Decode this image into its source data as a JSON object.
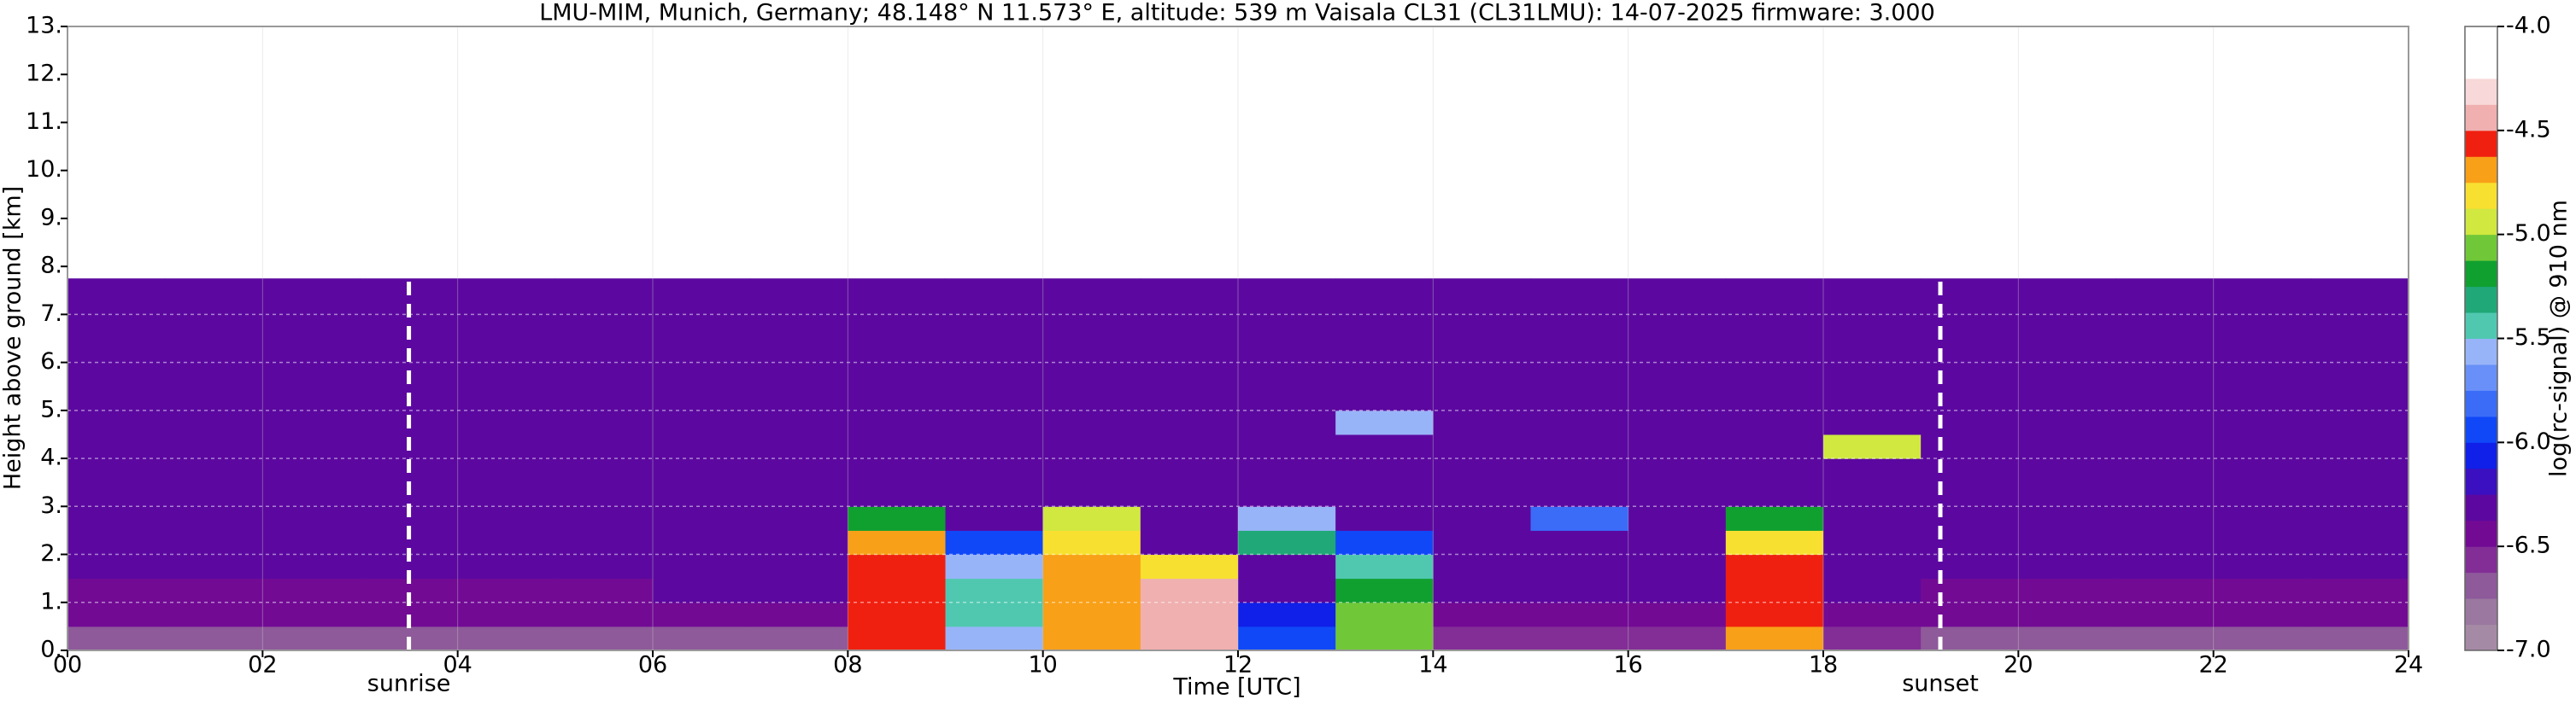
{
  "chart_data": {
    "type": "heatmap",
    "title": "LMU-MIM, Munich, Germany; 48.148° N 11.573° E, altitude: 539 m    Vaisala CL31 (CL31LMU): 14-07-2025    firmware: 3.000",
    "xlabel": "Time [UTC]",
    "ylabel": "Height above ground [km]",
    "xlim": [
      0,
      24
    ],
    "ylim": [
      0,
      13
    ],
    "xticks": [
      {
        "value": 0,
        "label": "00"
      },
      {
        "value": 2,
        "label": "02"
      },
      {
        "value": 4,
        "label": "04"
      },
      {
        "value": 6,
        "label": "06"
      },
      {
        "value": 8,
        "label": "08"
      },
      {
        "value": 10,
        "label": "10"
      },
      {
        "value": 12,
        "label": "12"
      },
      {
        "value": 14,
        "label": "14"
      },
      {
        "value": 16,
        "label": "16"
      },
      {
        "value": 18,
        "label": "18"
      },
      {
        "value": 20,
        "label": "20"
      },
      {
        "value": 22,
        "label": "22"
      },
      {
        "value": 24,
        "label": "24"
      }
    ],
    "yticks": [
      {
        "value": 0,
        "label": "0."
      },
      {
        "value": 1,
        "label": "1."
      },
      {
        "value": 2,
        "label": "2."
      },
      {
        "value": 3,
        "label": "3."
      },
      {
        "value": 4,
        "label": "4."
      },
      {
        "value": 5,
        "label": "5."
      },
      {
        "value": 6,
        "label": "6."
      },
      {
        "value": 7,
        "label": "7."
      },
      {
        "value": 8,
        "label": "8."
      },
      {
        "value": 9,
        "label": "9."
      },
      {
        "value": 10,
        "label": "10."
      },
      {
        "value": 11,
        "label": "11."
      },
      {
        "value": 12,
        "label": "12."
      },
      {
        "value": 13,
        "label": "13."
      }
    ],
    "grid": true,
    "x_bins": [
      0,
      1,
      2,
      3,
      4,
      5,
      6,
      7,
      8,
      9,
      10,
      11,
      12,
      13,
      14,
      15,
      16,
      17,
      18,
      19,
      20,
      21,
      22,
      23,
      24
    ],
    "y_bins": [
      0,
      0.5,
      1,
      1.5,
      2,
      2.5,
      3,
      3.5,
      4,
      4.5,
      5,
      5.5,
      6,
      6.5,
      7,
      7.5,
      7.75
    ],
    "values": [
      [
        -6.7,
        -6.7,
        -6.7,
        -6.7,
        -6.7,
        -6.7,
        -6.7,
        -6.7,
        -4.6,
        -5.6,
        -4.7,
        -4.4,
        -5.9,
        -5.1,
        -6.6,
        -6.6,
        -6.6,
        -4.7,
        -6.6,
        -6.7,
        -6.7,
        -6.7,
        -6.7,
        -6.7
      ],
      [
        -6.5,
        -6.5,
        -6.5,
        -6.5,
        -6.5,
        -6.5,
        -6.4,
        -6.4,
        -4.6,
        -5.5,
        -4.7,
        -4.4,
        -6.1,
        -5.1,
        -6.4,
        -6.4,
        -6.4,
        -4.6,
        -6.4,
        -6.5,
        -6.5,
        -6.5,
        -6.5,
        -6.5
      ],
      [
        -6.4,
        -6.4,
        -6.4,
        -6.4,
        -6.4,
        -6.4,
        -6.3,
        -6.3,
        -4.6,
        -5.4,
        -4.7,
        -4.4,
        -6.3,
        -5.2,
        -6.3,
        -6.3,
        -6.3,
        -4.6,
        -6.3,
        -6.4,
        -6.4,
        -6.4,
        -6.4,
        -6.4
      ],
      [
        -6.3,
        -6.3,
        -6.3,
        -6.3,
        -6.3,
        -6.3,
        -6.3,
        -6.3,
        -4.6,
        -5.6,
        -4.7,
        -4.8,
        -6.3,
        -5.4,
        -6.3,
        -6.3,
        -6.3,
        -4.6,
        -6.3,
        -6.3,
        -6.3,
        -6.3,
        -6.3,
        -6.3
      ],
      [
        -6.3,
        -6.3,
        -6.3,
        -6.3,
        -6.3,
        -6.3,
        -6.3,
        -6.3,
        -4.7,
        -6.0,
        -4.8,
        -6.3,
        -5.3,
        -5.9,
        -6.3,
        -6.3,
        -6.3,
        -4.8,
        -6.3,
        -6.3,
        -6.3,
        -6.3,
        -6.3,
        -6.3
      ],
      [
        -6.3,
        -6.3,
        -6.3,
        -6.3,
        -6.3,
        -6.3,
        -6.3,
        -6.3,
        -5.2,
        -6.3,
        -5.0,
        -6.3,
        -5.6,
        -6.3,
        -6.3,
        -5.8,
        -6.3,
        -5.2,
        -6.3,
        -6.3,
        -6.3,
        -6.3,
        -6.3,
        -6.3
      ],
      [
        -6.3,
        -6.3,
        -6.3,
        -6.3,
        -6.3,
        -6.3,
        -6.3,
        -6.3,
        -6.3,
        -6.3,
        -6.3,
        -6.3,
        -6.3,
        -6.3,
        -6.3,
        -6.3,
        -6.3,
        -6.3,
        -6.3,
        -6.3,
        -6.3,
        -6.3,
        -6.3,
        -6.3
      ],
      [
        -6.3,
        -6.3,
        -6.3,
        -6.3,
        -6.3,
        -6.3,
        -6.3,
        -6.3,
        -6.3,
        -6.3,
        -6.3,
        -6.3,
        -6.3,
        -6.3,
        -6.3,
        -6.3,
        -6.3,
        -6.3,
        -6.3,
        -6.3,
        -6.3,
        -6.3,
        -6.3,
        -6.3
      ],
      [
        -6.3,
        -6.3,
        -6.3,
        -6.3,
        -6.3,
        -6.3,
        -6.3,
        -6.3,
        -6.3,
        -6.3,
        -6.3,
        -6.3,
        -6.3,
        -6.3,
        -6.3,
        -6.3,
        -6.3,
        -6.3,
        -4.9,
        -6.3,
        -6.3,
        -6.3,
        -6.3,
        -6.3
      ],
      [
        -6.3,
        -6.3,
        -6.3,
        -6.3,
        -6.3,
        -6.3,
        -6.3,
        -6.3,
        -6.3,
        -6.3,
        -6.3,
        -6.3,
        -6.3,
        -5.6,
        -6.3,
        -6.3,
        -6.3,
        -6.3,
        -6.3,
        -6.3,
        -6.3,
        -6.3,
        -6.3,
        -6.3
      ],
      [
        -6.3,
        -6.3,
        -6.3,
        -6.3,
        -6.3,
        -6.3,
        -6.3,
        -6.3,
        -6.3,
        -6.3,
        -6.3,
        -6.3,
        -6.3,
        -6.3,
        -6.3,
        -6.3,
        -6.3,
        -6.3,
        -6.3,
        -6.3,
        -6.3,
        -6.3,
        -6.3,
        -6.3
      ],
      [
        -6.3,
        -6.3,
        -6.3,
        -6.3,
        -6.3,
        -6.3,
        -6.3,
        -6.3,
        -6.3,
        -6.3,
        -6.3,
        -6.3,
        -6.3,
        -6.3,
        -6.3,
        -6.3,
        -6.3,
        -6.3,
        -6.3,
        -6.3,
        -6.3,
        -6.3,
        -6.3,
        -6.3
      ],
      [
        -6.3,
        -6.3,
        -6.3,
        -6.3,
        -6.3,
        -6.3,
        -6.3,
        -6.3,
        -6.3,
        -6.3,
        -6.3,
        -6.3,
        -6.3,
        -6.3,
        -6.3,
        -6.3,
        -6.3,
        -6.3,
        -6.3,
        -6.3,
        -6.3,
        -6.3,
        -6.3,
        -6.3
      ],
      [
        -6.3,
        -6.3,
        -6.3,
        -6.3,
        -6.3,
        -6.3,
        -6.3,
        -6.3,
        -6.3,
        -6.3,
        -6.3,
        -6.3,
        -6.3,
        -6.3,
        -6.3,
        -6.3,
        -6.3,
        -6.3,
        -6.3,
        -6.3,
        -6.3,
        -6.3,
        -6.3,
        -6.3
      ],
      [
        -6.3,
        -6.3,
        -6.3,
        -6.3,
        -6.3,
        -6.3,
        -6.3,
        -6.3,
        -6.3,
        -6.3,
        -6.3,
        -6.3,
        -6.3,
        -6.3,
        -6.3,
        -6.3,
        -6.3,
        -6.3,
        -6.3,
        -6.3,
        -6.3,
        -6.3,
        -6.3,
        -6.3
      ],
      [
        -6.3,
        -6.3,
        -6.3,
        -6.3,
        -6.3,
        -6.3,
        -6.3,
        -6.3,
        -6.3,
        -6.3,
        -6.3,
        -6.3,
        -6.3,
        -6.3,
        -6.3,
        -6.3,
        -6.3,
        -6.3,
        -6.3,
        -6.3,
        -6.3,
        -6.3,
        -6.3,
        -6.3
      ]
    ],
    "annotations": [
      {
        "label": "sunrise",
        "x": 3.5
      },
      {
        "label": "sunset",
        "x": 19.2
      }
    ],
    "colorbar": {
      "label": "log(rc-signal) @ 910 nm",
      "lim": [
        -7,
        -4
      ],
      "ticks": [
        {
          "value": -4,
          "label": "-4.0"
        },
        {
          "value": -4.5,
          "label": "-4.5"
        },
        {
          "value": -5,
          "label": "-5.0"
        },
        {
          "value": -5.5,
          "label": "-5.5"
        },
        {
          "value": -6,
          "label": "-6.0"
        },
        {
          "value": -6.5,
          "label": "-6.5"
        },
        {
          "value": -7,
          "label": "-7.0"
        }
      ],
      "colors": [
        "#a58aa5",
        "#9a78a0",
        "#8e5a9a",
        "#822e96",
        "#720a94",
        "#5c08a0",
        "#3a10c0",
        "#1020e8",
        "#1048f8",
        "#3a6cf8",
        "#6890f8",
        "#98b4f8",
        "#50c8b0",
        "#20a878",
        "#10a030",
        "#70c838",
        "#d0e840",
        "#f8e030",
        "#f8a018",
        "#f02010",
        "#f0b0b0",
        "#f8d8d8",
        "#ffffff",
        "#ffffff"
      ]
    }
  }
}
